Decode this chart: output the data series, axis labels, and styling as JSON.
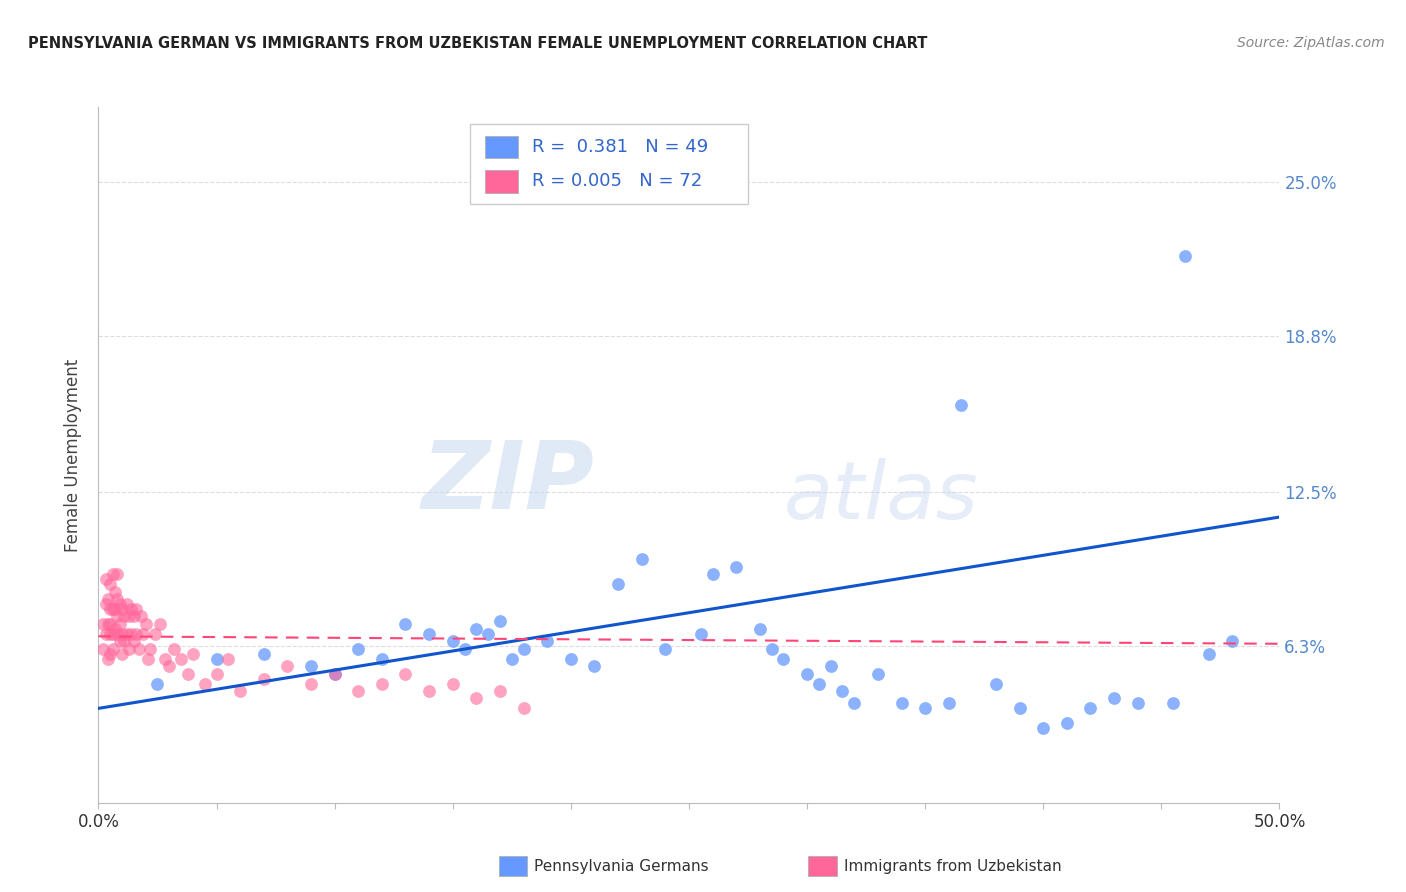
{
  "title": "PENNSYLVANIA GERMAN VS IMMIGRANTS FROM UZBEKISTAN FEMALE UNEMPLOYMENT CORRELATION CHART",
  "source": "Source: ZipAtlas.com",
  "ylabel": "Female Unemployment",
  "xlim": [
    0.0,
    0.5
  ],
  "ylim": [
    0.0,
    0.28
  ],
  "ytick_vals": [
    0.0,
    0.063,
    0.125,
    0.188,
    0.25
  ],
  "ytick_labels": [
    "",
    "6.3%",
    "12.5%",
    "18.8%",
    "25.0%"
  ],
  "blue_color": "#6699ff",
  "pink_color": "#ff6699",
  "blue_line_color": "#1155cc",
  "pink_line_color": "#ff4477",
  "blue_R": 0.381,
  "blue_N": 49,
  "pink_R": 0.005,
  "pink_N": 72,
  "background_color": "#ffffff",
  "grid_color": "#dddddd",
  "blue_scatter_x": [
    0.025,
    0.05,
    0.07,
    0.09,
    0.1,
    0.11,
    0.12,
    0.13,
    0.14,
    0.15,
    0.155,
    0.16,
    0.165,
    0.17,
    0.175,
    0.18,
    0.19,
    0.2,
    0.21,
    0.22,
    0.23,
    0.24,
    0.255,
    0.26,
    0.27,
    0.28,
    0.285,
    0.29,
    0.3,
    0.305,
    0.31,
    0.315,
    0.32,
    0.33,
    0.34,
    0.35,
    0.36,
    0.365,
    0.38,
    0.39,
    0.4,
    0.41,
    0.42,
    0.43,
    0.44,
    0.455,
    0.46,
    0.47,
    0.48
  ],
  "blue_scatter_y": [
    0.048,
    0.058,
    0.06,
    0.055,
    0.052,
    0.062,
    0.058,
    0.072,
    0.068,
    0.065,
    0.062,
    0.07,
    0.068,
    0.073,
    0.058,
    0.062,
    0.065,
    0.058,
    0.055,
    0.088,
    0.098,
    0.062,
    0.068,
    0.092,
    0.095,
    0.07,
    0.062,
    0.058,
    0.052,
    0.048,
    0.055,
    0.045,
    0.04,
    0.052,
    0.04,
    0.038,
    0.04,
    0.16,
    0.048,
    0.038,
    0.03,
    0.032,
    0.038,
    0.042,
    0.04,
    0.04,
    0.22,
    0.06,
    0.065
  ],
  "pink_scatter_x": [
    0.002,
    0.002,
    0.003,
    0.003,
    0.003,
    0.004,
    0.004,
    0.004,
    0.005,
    0.005,
    0.005,
    0.005,
    0.005,
    0.006,
    0.006,
    0.006,
    0.006,
    0.007,
    0.007,
    0.007,
    0.008,
    0.008,
    0.008,
    0.008,
    0.009,
    0.009,
    0.009,
    0.01,
    0.01,
    0.01,
    0.011,
    0.011,
    0.012,
    0.012,
    0.013,
    0.013,
    0.014,
    0.014,
    0.015,
    0.015,
    0.016,
    0.016,
    0.017,
    0.018,
    0.019,
    0.02,
    0.021,
    0.022,
    0.024,
    0.026,
    0.028,
    0.03,
    0.032,
    0.035,
    0.038,
    0.04,
    0.045,
    0.05,
    0.055,
    0.06,
    0.07,
    0.08,
    0.09,
    0.1,
    0.11,
    0.12,
    0.13,
    0.14,
    0.15,
    0.16,
    0.17,
    0.18
  ],
  "pink_scatter_y": [
    0.062,
    0.072,
    0.068,
    0.08,
    0.09,
    0.058,
    0.072,
    0.082,
    0.06,
    0.068,
    0.072,
    0.078,
    0.088,
    0.062,
    0.068,
    0.078,
    0.092,
    0.07,
    0.078,
    0.085,
    0.068,
    0.075,
    0.082,
    0.092,
    0.065,
    0.072,
    0.08,
    0.06,
    0.068,
    0.078,
    0.065,
    0.075,
    0.068,
    0.08,
    0.062,
    0.075,
    0.068,
    0.078,
    0.065,
    0.075,
    0.068,
    0.078,
    0.062,
    0.075,
    0.068,
    0.072,
    0.058,
    0.062,
    0.068,
    0.072,
    0.058,
    0.055,
    0.062,
    0.058,
    0.052,
    0.06,
    0.048,
    0.052,
    0.058,
    0.045,
    0.05,
    0.055,
    0.048,
    0.052,
    0.045,
    0.048,
    0.052,
    0.045,
    0.048,
    0.042,
    0.045,
    0.038
  ],
  "blue_line_x": [
    0.0,
    0.5
  ],
  "blue_line_y": [
    0.038,
    0.115
  ],
  "pink_line_x": [
    0.0,
    0.5
  ],
  "pink_line_y": [
    0.067,
    0.064
  ]
}
